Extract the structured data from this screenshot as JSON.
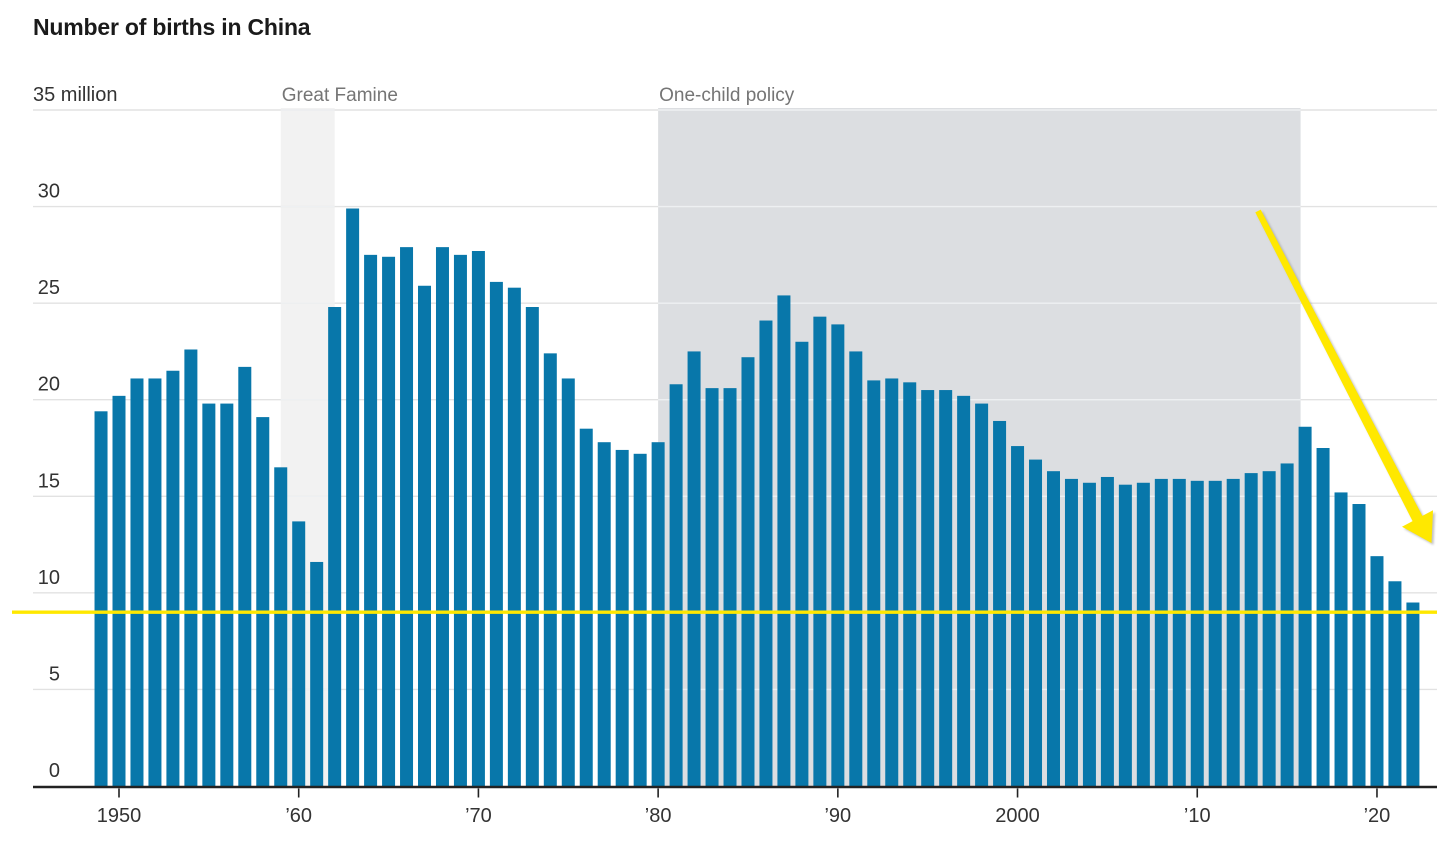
{
  "title": "Number of births in China",
  "colors": {
    "bar": "#0877aa",
    "famine_band": "#f2f2f2",
    "policy_band": "#dcdee1",
    "gridline": "#e2e2e2",
    "band_gridline": "#eef0f2",
    "axis": "#222222",
    "tick_text": "#333333",
    "annotation_text": "#757575",
    "highlight_yellow": "#ffe800"
  },
  "chart_data": {
    "type": "bar",
    "title": "Number of births in China",
    "xlabel": "",
    "ylabel": "",
    "unit": "million",
    "ylim": [
      0,
      35
    ],
    "grid": true,
    "legend": false,
    "start_year": 1949,
    "end_year": 2022,
    "values": [
      19.4,
      20.2,
      21.1,
      21.1,
      21.5,
      22.6,
      19.8,
      19.8,
      21.7,
      19.1,
      16.5,
      13.7,
      11.6,
      24.8,
      29.9,
      27.5,
      27.4,
      27.9,
      25.9,
      27.9,
      27.5,
      27.7,
      26.1,
      25.8,
      24.8,
      22.4,
      21.1,
      18.5,
      17.8,
      17.4,
      17.2,
      17.8,
      20.8,
      22.5,
      20.6,
      20.6,
      22.2,
      24.1,
      25.4,
      23.0,
      24.3,
      23.9,
      22.5,
      21.0,
      21.1,
      20.9,
      20.5,
      20.5,
      20.2,
      19.8,
      18.9,
      17.6,
      16.9,
      16.3,
      15.9,
      15.7,
      16.0,
      15.6,
      15.7,
      15.9,
      15.9,
      15.8,
      15.8,
      15.9,
      16.2,
      16.3,
      16.7,
      18.6,
      17.5,
      15.2,
      14.6,
      11.9,
      10.6,
      9.5
    ],
    "y_ticks": [
      {
        "value": 35,
        "label": "35 million"
      },
      {
        "value": 30,
        "label": "30"
      },
      {
        "value": 25,
        "label": "25"
      },
      {
        "value": 20,
        "label": "20"
      },
      {
        "value": 15,
        "label": "15"
      },
      {
        "value": 10,
        "label": "10"
      },
      {
        "value": 5,
        "label": "5"
      },
      {
        "value": 0,
        "label": "0"
      }
    ],
    "x_ticks": [
      {
        "year": 1950,
        "label": "1950"
      },
      {
        "year": 1960,
        "label": "’60"
      },
      {
        "year": 1970,
        "label": "’70"
      },
      {
        "year": 1980,
        "label": "’80"
      },
      {
        "year": 1990,
        "label": "’90"
      },
      {
        "year": 2000,
        "label": "2000"
      },
      {
        "year": 2010,
        "label": "’10"
      },
      {
        "year": 2020,
        "label": "’20"
      }
    ],
    "bands": [
      {
        "id": "great-famine",
        "label": "Great Famine",
        "from_year": 1959,
        "to_year": 1962
      },
      {
        "id": "one-child-policy",
        "label": "One-child policy",
        "from_year": 1980,
        "to_year": 2015.75
      }
    ],
    "annotations": {
      "highlight_line_value": 9.0,
      "trend_arrow": {
        "description": "yellow arrow pointing down-right toward the latest bar"
      }
    }
  }
}
